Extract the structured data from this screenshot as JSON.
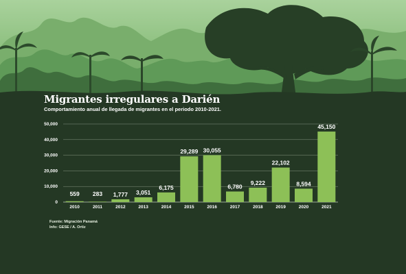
{
  "title": "Migrantes irregulares a Darién",
  "subtitle": "Comportamiento anual de llegada de migrantes en el periodo 2010-2021.",
  "source": "Fuente: Migración Panamá",
  "credit": "Info: GESE / A. Ortiz",
  "colors": {
    "bar": "#8dc057",
    "background": "#243824",
    "gridline": "#d8e3d0",
    "forest": "#4d8a4d"
  },
  "chart_data": {
    "type": "bar",
    "title": "Migrantes irregulares a Darién",
    "subtitle": "Comportamiento anual de llegada de migrantes en el periodo 2010-2021.",
    "categories": [
      "2010",
      "2011",
      "2012",
      "2013",
      "2014",
      "2015",
      "2016",
      "2017",
      "2018",
      "2019",
      "2020",
      "2021"
    ],
    "values": [
      559,
      283,
      1777,
      3051,
      6175,
      29289,
      30055,
      6780,
      9222,
      22102,
      8594,
      45150
    ],
    "value_labels": [
      "559",
      "283",
      "1,777",
      "3,051",
      "6,175",
      "29,289",
      "30,055",
      "6,780",
      "9,222",
      "22,102",
      "8,594",
      "45,150"
    ],
    "ylim": [
      0,
      50000
    ],
    "yticks": [
      0,
      10000,
      20000,
      30000,
      40000,
      50000
    ],
    "ytick_labels": [
      "0",
      "10,000",
      "20,000",
      "30,000",
      "40,000",
      "50,000"
    ],
    "xlabel": "",
    "ylabel": "",
    "grid": true,
    "legend": "none"
  }
}
